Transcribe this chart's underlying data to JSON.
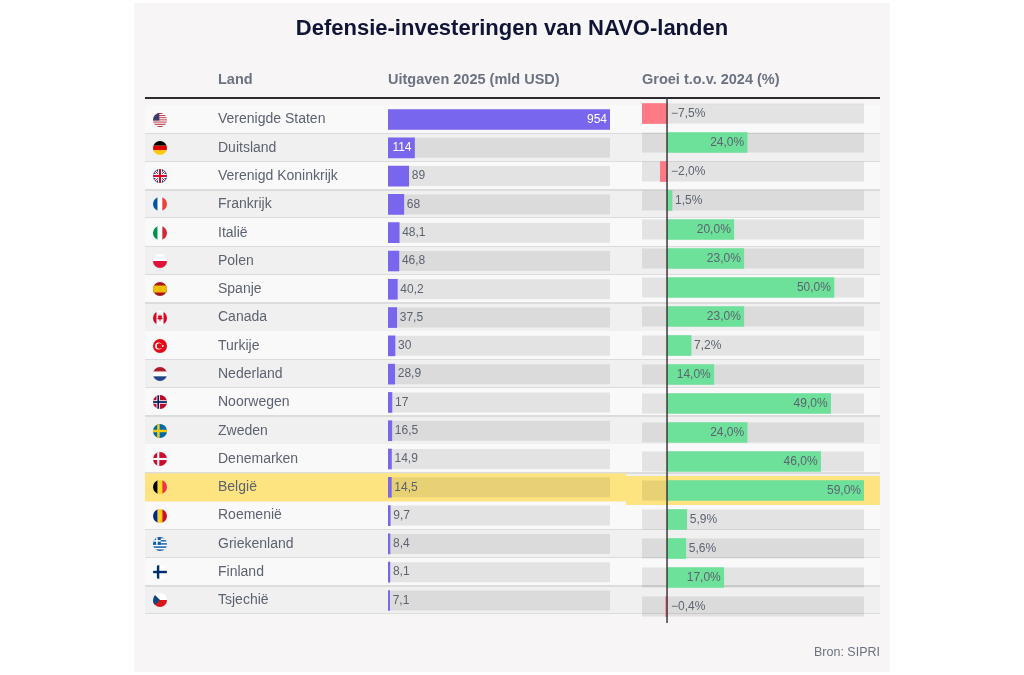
{
  "chart_data": [
    {
      "type": "bar",
      "orientation": "horizontal",
      "title": "Defensie-investeringen van NAVO-landen",
      "ylabel": "Land",
      "xlabel": "Uitgaven 2025 (mld USD)",
      "categories": [
        "Verenigde Staten",
        "Duitsland",
        "Verenigd Koninkrijk",
        "Frankrijk",
        "Italië",
        "Polen",
        "Spanje",
        "Canada",
        "Turkije",
        "Nederland",
        "Noorwegen",
        "Zweden",
        "Denemarken",
        "België",
        "Roemenië",
        "Griekenland",
        "Finland",
        "Tsjechië"
      ],
      "values": [
        954,
        114,
        89,
        68,
        48.1,
        46.8,
        40.2,
        37.5,
        30,
        28.9,
        17,
        16.5,
        14.9,
        14.5,
        9.7,
        8.4,
        8.1,
        7.1
      ],
      "color": "#7866ee",
      "value_labels": [
        "954",
        "114",
        "89",
        "68",
        "48,1",
        "46,8",
        "40,2",
        "37,5",
        "30",
        "28,9",
        "17",
        "16,5",
        "14,9",
        "14,5",
        "9,7",
        "8,4",
        "8,1",
        "7,1"
      ],
      "xlim": [
        0,
        954
      ],
      "tick_labels": "y",
      "bands": [
        {
          "axis": "y",
          "from": "België",
          "to": "België",
          "color": "#fee480"
        }
      ]
    },
    {
      "type": "bar",
      "orientation": "horizontal",
      "xlabel": "Groei t.o.v. 2024 (%)",
      "categories": [
        "Verenigde Staten",
        "Duitsland",
        "Verenigd Koninkrijk",
        "Frankrijk",
        "Italië",
        "Polen",
        "Spanje",
        "Canada",
        "Turkije",
        "Nederland",
        "Noorwegen",
        "Zweden",
        "Denemarken",
        "België",
        "Roemenië",
        "Griekenland",
        "Finland",
        "Tsjechië"
      ],
      "values": [
        -7.5,
        24,
        -2,
        1.5,
        20,
        23,
        50,
        23,
        7.2,
        14,
        49,
        24,
        46,
        59,
        5.9,
        5.6,
        17,
        -0.4
      ],
      "colors": [
        "#fe7a84",
        "#6de09a",
        "#fe7a84",
        "#6de09a",
        "#6de09a",
        "#6de09a",
        "#6de09a",
        "#6de09a",
        "#6de09a",
        "#6de09a",
        "#6de09a",
        "#6de09a",
        "#6de09a",
        "#6de09a",
        "#6de09a",
        "#6de09a",
        "#6de09a",
        "#fe7a84"
      ],
      "value_labels": [
        "−7,5%",
        "24,0%",
        "−2,0%",
        "1,5%",
        "20,0%",
        "23,0%",
        "50,0%",
        "23,0%",
        "7,2%",
        "14,0%",
        "49,0%",
        "24,0%",
        "46,0%",
        "59,0%",
        "5,9%",
        "5,6%",
        "17,0%",
        "−0,4%"
      ],
      "xlim": [
        -7.5,
        59
      ],
      "tick_labels": false,
      "ref_lines": [
        {
          "axis": "x",
          "value": 0,
          "color": "#3a3a3e"
        }
      ],
      "bands": [
        {
          "axis": "y",
          "from": "België",
          "to": "België",
          "color": "#fee480"
        }
      ],
      "annotations": [
        "Bron: SIPRI"
      ]
    }
  ]
}
